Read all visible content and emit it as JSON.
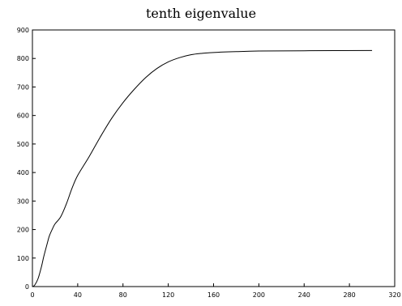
{
  "chart_data": {
    "type": "line",
    "title": "tenth eigenvalue",
    "xlabel": "",
    "ylabel": "",
    "xlim": [
      0,
      320
    ],
    "ylim": [
      0,
      900
    ],
    "xticks": [
      0,
      40,
      80,
      120,
      160,
      200,
      240,
      280,
      320
    ],
    "yticks": [
      0,
      100,
      200,
      300,
      400,
      500,
      600,
      700,
      800,
      900
    ],
    "grid": false,
    "series": [
      {
        "color": "#000000",
        "points": [
          [
            0,
            0
          ],
          [
            2,
            5
          ],
          [
            5,
            28
          ],
          [
            8,
            70
          ],
          [
            10,
            105
          ],
          [
            13,
            150
          ],
          [
            15,
            178
          ],
          [
            18,
            205
          ],
          [
            20,
            220
          ],
          [
            25,
            245
          ],
          [
            30,
            290
          ],
          [
            35,
            345
          ],
          [
            40,
            390
          ],
          [
            50,
            455
          ],
          [
            60,
            525
          ],
          [
            70,
            590
          ],
          [
            80,
            645
          ],
          [
            90,
            692
          ],
          [
            100,
            733
          ],
          [
            110,
            765
          ],
          [
            120,
            788
          ],
          [
            130,
            803
          ],
          [
            140,
            813
          ],
          [
            150,
            818
          ],
          [
            160,
            821
          ],
          [
            180,
            824
          ],
          [
            200,
            826
          ],
          [
            240,
            827
          ],
          [
            300,
            828
          ]
        ]
      }
    ]
  }
}
